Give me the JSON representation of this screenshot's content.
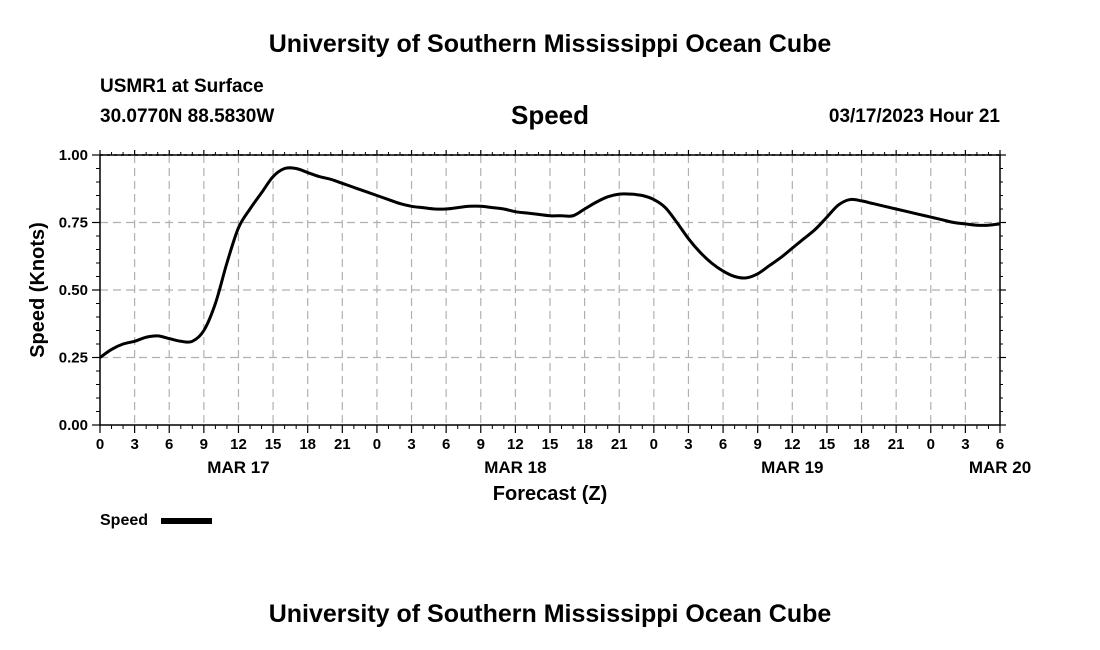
{
  "page": {
    "title_top": "University of Southern Mississippi Ocean Cube",
    "title_bottom": "University of Southern Mississippi Ocean Cube",
    "station": "USMR1 at Surface",
    "coords": "30.0770N  88.5830W",
    "chart_title": "Speed",
    "timestamp": "03/17/2023 Hour 21",
    "legend_label": "Speed"
  },
  "chart_data": {
    "type": "line",
    "title": "Speed",
    "xlabel": "Forecast (Z)",
    "ylabel": "Speed (Knots)",
    "xlim": [
      0,
      78
    ],
    "ylim": [
      0,
      1
    ],
    "yticks": [
      0,
      0.25,
      0.5,
      0.75,
      1.0
    ],
    "ytick_labels": [
      "0.00",
      "0.25",
      "0.50",
      "0.75",
      "1.00"
    ],
    "xtick_labels": [
      "0",
      "3",
      "6",
      "9",
      "12",
      "15",
      "18",
      "21",
      "0",
      "3",
      "6",
      "9",
      "12",
      "15",
      "18",
      "21",
      "0",
      "3",
      "6",
      "9",
      "12",
      "15",
      "18",
      "21",
      "0",
      "3",
      "6"
    ],
    "date_labels": [
      {
        "label": "MAR 17",
        "x": 12
      },
      {
        "label": "MAR 18",
        "x": 36
      },
      {
        "label": "MAR 19",
        "x": 60
      },
      {
        "label": "MAR 20",
        "x": 78
      }
    ],
    "grid": true,
    "legend": "bottom-left",
    "line_color": "#000000",
    "series": [
      {
        "name": "Speed",
        "x": [
          0,
          1,
          2,
          3,
          4,
          5,
          6,
          7,
          8,
          9,
          10,
          11,
          12,
          13,
          14,
          15,
          16,
          17,
          18,
          19,
          20,
          21,
          22,
          23,
          24,
          25,
          26,
          27,
          28,
          29,
          30,
          31,
          32,
          33,
          34,
          35,
          36,
          37,
          38,
          39,
          40,
          41,
          42,
          43,
          44,
          45,
          46,
          47,
          48,
          49,
          50,
          51,
          52,
          53,
          54,
          55,
          56,
          57,
          58,
          59,
          60,
          61,
          62,
          63,
          64,
          65,
          66,
          67,
          68,
          69,
          70,
          71,
          72,
          73,
          74,
          75,
          76,
          77,
          78
        ],
        "values": [
          0.25,
          0.28,
          0.3,
          0.31,
          0.325,
          0.33,
          0.32,
          0.31,
          0.31,
          0.35,
          0.45,
          0.6,
          0.73,
          0.8,
          0.86,
          0.92,
          0.95,
          0.95,
          0.935,
          0.92,
          0.91,
          0.895,
          0.88,
          0.865,
          0.85,
          0.835,
          0.82,
          0.81,
          0.805,
          0.8,
          0.8,
          0.805,
          0.81,
          0.81,
          0.805,
          0.8,
          0.79,
          0.785,
          0.78,
          0.775,
          0.775,
          0.775,
          0.8,
          0.825,
          0.845,
          0.855,
          0.855,
          0.85,
          0.835,
          0.805,
          0.75,
          0.69,
          0.64,
          0.6,
          0.57,
          0.55,
          0.545,
          0.56,
          0.59,
          0.62,
          0.655,
          0.69,
          0.725,
          0.77,
          0.815,
          0.835,
          0.83,
          0.82,
          0.81,
          0.8,
          0.79,
          0.78,
          0.77,
          0.76,
          0.75,
          0.745,
          0.74,
          0.74,
          0.745
        ]
      }
    ]
  }
}
